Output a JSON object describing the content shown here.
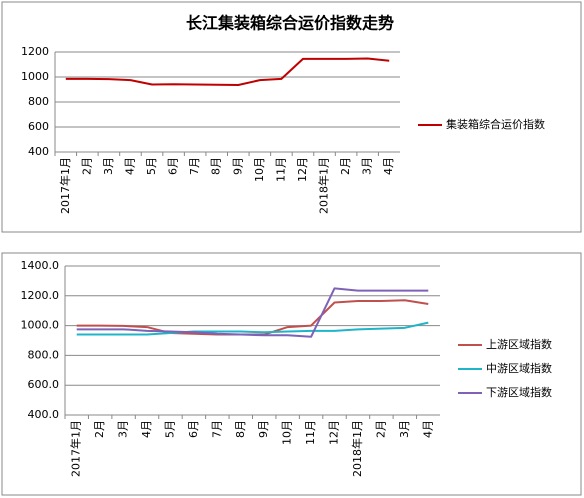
{
  "chart_data": [
    {
      "type": "line",
      "title": "长江集装箱综合运价指数走势",
      "categories": [
        "2017年1月",
        "2月",
        "3月",
        "4月",
        "5月",
        "6月",
        "7月",
        "8月",
        "9月",
        "10月",
        "11月",
        "12月",
        "2018年1月",
        "2月",
        "3月",
        "4月"
      ],
      "series": [
        {
          "name": "集装箱综合运价指数",
          "color": "#c00000",
          "values": [
            985,
            985,
            983,
            975,
            940,
            942,
            940,
            938,
            936,
            975,
            985,
            1145,
            1145,
            1145,
            1148,
            1130
          ]
        }
      ],
      "ylim": [
        400,
        1200
      ],
      "yticks": [
        400,
        600,
        800,
        1000,
        1200
      ],
      "grid": true,
      "legend": "right"
    },
    {
      "type": "line",
      "categories": [
        "2017年1月",
        "2月",
        "3月",
        "4月",
        "5月",
        "6月",
        "7月",
        "8月",
        "9月",
        "10月",
        "11月",
        "12月",
        "2018年1月",
        "2月",
        "3月",
        "4月"
      ],
      "series": [
        {
          "name": "上游区域指数",
          "color": "#c0504d",
          "values": [
            1000,
            1000,
            998,
            990,
            950,
            945,
            940,
            940,
            940,
            990,
            1000,
            1155,
            1165,
            1165,
            1170,
            1145
          ]
        },
        {
          "name": "中游区域指数",
          "color": "#1fb5c8",
          "values": [
            940,
            940,
            940,
            940,
            950,
            960,
            960,
            960,
            955,
            960,
            965,
            965,
            975,
            980,
            985,
            1020
          ]
        },
        {
          "name": "下游区域指数",
          "color": "#7e62b8",
          "values": [
            975,
            975,
            975,
            965,
            960,
            955,
            945,
            940,
            935,
            935,
            925,
            1250,
            1235,
            1235,
            1235,
            1235
          ]
        }
      ],
      "ylim": [
        400,
        1400
      ],
      "yticks": [
        {
          "value": 400,
          "label": "400.0"
        },
        {
          "value": 600,
          "label": "600.0"
        },
        {
          "value": 800,
          "label": "800.0"
        },
        {
          "value": 1000,
          "label": "1000.0"
        },
        {
          "value": 1200,
          "label": "1200.0"
        },
        {
          "value": 1400,
          "label": "1400.0"
        }
      ],
      "grid": true,
      "legend": "right"
    }
  ]
}
